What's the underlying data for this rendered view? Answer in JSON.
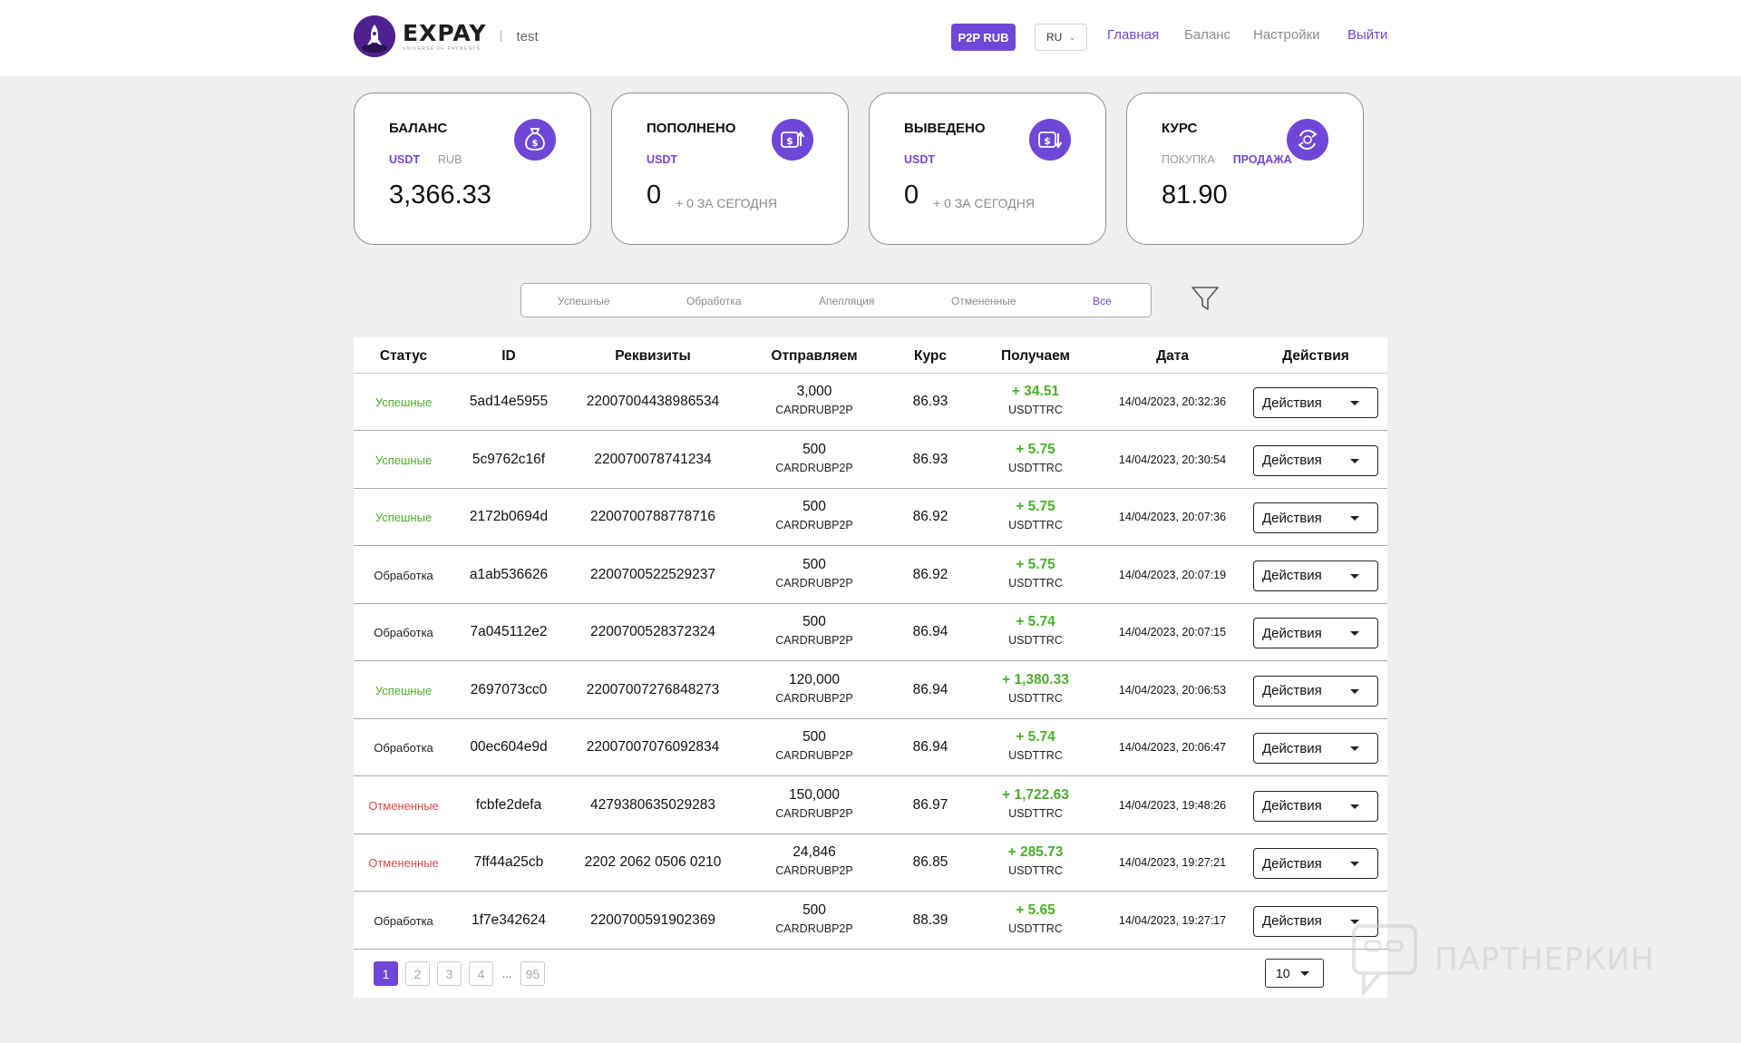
{
  "header": {
    "logo_text": "EXPAY",
    "logo_subtitle": "UNIVERSE OF PAYMENTS",
    "account_name": "test",
    "p2p_badge": "P2P RUB",
    "language": "RU",
    "nav": {
      "home": "Главная",
      "balance": "Баланс",
      "settings": "Настройки",
      "logout": "Выйти"
    }
  },
  "cards": {
    "balance": {
      "title": "БАЛАНС",
      "tab_active": "USDT",
      "tab_inactive": "RUB",
      "value": "3,366.33",
      "icon": "money-bag-icon"
    },
    "deposited": {
      "title": "ПОПОЛНЕНО",
      "tab_active": "USDT",
      "value": "0",
      "today": "+ 0 ЗА СЕГОДНЯ",
      "icon": "dollar-up-icon"
    },
    "withdrawn": {
      "title": "ВЫВЕДЕНО",
      "tab_active": "USDT",
      "value": "0",
      "today": "+ 0 ЗА СЕГОДНЯ",
      "icon": "dollar-down-icon"
    },
    "rate": {
      "title": "КУРС",
      "tab_inactive": "ПОКУПКА",
      "tab_active": "ПРОДАЖА",
      "value": "81.90",
      "icon": "exchange-icon"
    }
  },
  "filters": {
    "tabs": [
      "Успешные",
      "Обработка",
      "Апелляция",
      "Отмененные",
      "Все"
    ],
    "active": "Все"
  },
  "table": {
    "columns": [
      "Статус",
      "ID",
      "Реквизиты",
      "Отправляем",
      "Курс",
      "Получаем",
      "Дата",
      "Действия"
    ],
    "action_label": "Действия",
    "rows": [
      {
        "status": "Успешные",
        "status_type": "ok",
        "id": "5ad14e5955",
        "requisites": "22007004438986534",
        "send_amount": "3,000",
        "send_currency": "CARDRUBP2P",
        "rate": "86.93",
        "receive_amount": "+ 34.51",
        "receive_currency": "USDTTRC",
        "date": "14/04/2023, 20:32:36"
      },
      {
        "status": "Успешные",
        "status_type": "ok",
        "id": "5c9762c16f",
        "requisites": "220070078741234",
        "send_amount": "500",
        "send_currency": "CARDRUBP2P",
        "rate": "86.93",
        "receive_amount": "+ 5.75",
        "receive_currency": "USDTTRC",
        "date": "14/04/2023, 20:30:54"
      },
      {
        "status": "Успешные",
        "status_type": "ok",
        "id": "2172b0694d",
        "requisites": "2200700788778716",
        "send_amount": "500",
        "send_currency": "CARDRUBP2P",
        "rate": "86.92",
        "receive_amount": "+ 5.75",
        "receive_currency": "USDTTRC",
        "date": "14/04/2023, 20:07:36"
      },
      {
        "status": "Обработка",
        "status_type": "proc",
        "id": "a1ab536626",
        "requisites": "2200700522529237",
        "send_amount": "500",
        "send_currency": "CARDRUBP2P",
        "rate": "86.92",
        "receive_amount": "+ 5.75",
        "receive_currency": "USDTTRC",
        "date": "14/04/2023, 20:07:19"
      },
      {
        "status": "Обработка",
        "status_type": "proc",
        "id": "7a045112e2",
        "requisites": "2200700528372324",
        "send_amount": "500",
        "send_currency": "CARDRUBP2P",
        "rate": "86.94",
        "receive_amount": "+ 5.74",
        "receive_currency": "USDTTRC",
        "date": "14/04/2023, 20:07:15"
      },
      {
        "status": "Успешные",
        "status_type": "ok",
        "id": "2697073cc0",
        "requisites": "22007007276848273",
        "send_amount": "120,000",
        "send_currency": "CARDRUBP2P",
        "rate": "86.94",
        "receive_amount": "+ 1,380.33",
        "receive_currency": "USDTTRC",
        "date": "14/04/2023, 20:06:53"
      },
      {
        "status": "Обработка",
        "status_type": "proc",
        "id": "00ec604e9d",
        "requisites": "22007007076092834",
        "send_amount": "500",
        "send_currency": "CARDRUBP2P",
        "rate": "86.94",
        "receive_amount": "+ 5.74",
        "receive_currency": "USDTTRC",
        "date": "14/04/2023, 20:06:47"
      },
      {
        "status": "Отмененные",
        "status_type": "cancel",
        "id": "fcbfe2defa",
        "requisites": "4279380635029283",
        "send_amount": "150,000",
        "send_currency": "CARDRUBP2P",
        "rate": "86.97",
        "receive_amount": "+ 1,722.63",
        "receive_currency": "USDTTRC",
        "date": "14/04/2023, 19:48:26"
      },
      {
        "status": "Отмененные",
        "status_type": "cancel",
        "id": "7ff44a25cb",
        "requisites": "2202 2062 0506 0210",
        "send_amount": "24,846",
        "send_currency": "CARDRUBP2P",
        "rate": "86.85",
        "receive_amount": "+ 285.73",
        "receive_currency": "USDTTRC",
        "date": "14/04/2023, 19:27:21"
      },
      {
        "status": "Обработка",
        "status_type": "proc",
        "id": "1f7e342624",
        "requisites": "2200700591902369",
        "send_amount": "500",
        "send_currency": "CARDRUBP2P",
        "rate": "88.39",
        "receive_amount": "+ 5.65",
        "receive_currency": "USDTTRC",
        "date": "14/04/2023, 19:27:17"
      }
    ]
  },
  "pagination": {
    "pages": [
      "1",
      "2",
      "3",
      "4"
    ],
    "active": "1",
    "ellipsis": "...",
    "last": "95",
    "per_page": "10"
  },
  "watermark": {
    "text": "ПАРТНЕРКИН"
  },
  "colors": {
    "accent": "#6f47d6",
    "success": "#4bb02a",
    "cancel": "#e04848"
  }
}
